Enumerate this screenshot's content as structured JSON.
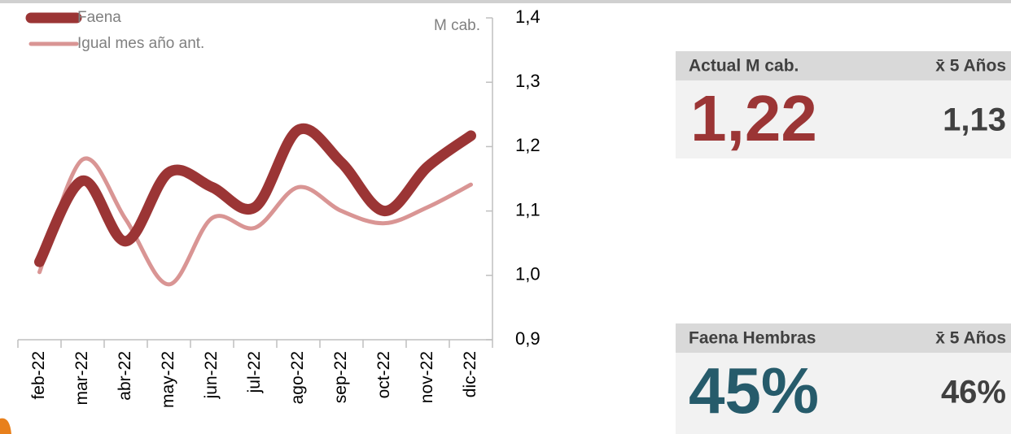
{
  "chart_data": {
    "type": "line",
    "y_label": "M cab.",
    "categories": [
      "feb-22",
      "mar-22",
      "abr-22",
      "may-22",
      "jun-22",
      "jul-22",
      "ago-22",
      "sep-22",
      "oct-22",
      "nov-22",
      "dic-22"
    ],
    "series": [
      {
        "name": "Faena",
        "color": "#9b3535",
        "values": [
          1.021,
          1.147,
          1.053,
          1.16,
          1.137,
          1.106,
          1.226,
          1.175,
          1.1,
          1.169,
          1.217
        ]
      },
      {
        "name": "Igual mes año ant.",
        "color": "#d99594",
        "values": [
          1.005,
          1.18,
          1.087,
          0.986,
          1.089,
          1.074,
          1.137,
          1.1,
          1.081,
          1.106,
          1.141
        ]
      }
    ],
    "ylim": [
      0.9,
      1.4
    ],
    "yticks": [
      {
        "value": 0.9,
        "label": "0,9"
      },
      {
        "value": 1.0,
        "label": "1,0"
      },
      {
        "value": 1.1,
        "label": "1,1"
      },
      {
        "value": 1.2,
        "label": "1,2"
      },
      {
        "value": 1.3,
        "label": "1,3"
      },
      {
        "value": 1.4,
        "label": "1,4"
      }
    ],
    "legend": "top-left"
  },
  "panels": [
    {
      "header": "Actual M cab.",
      "avg_header": "x̄ 5 Años",
      "value": "1,22",
      "avg": "1,13",
      "color": "#9b3535"
    },
    {
      "header": "Faena Hembras",
      "avg_header": "x̄ 5 Años",
      "value": "45%",
      "avg": "46%",
      "color": "#265b6b"
    }
  ]
}
